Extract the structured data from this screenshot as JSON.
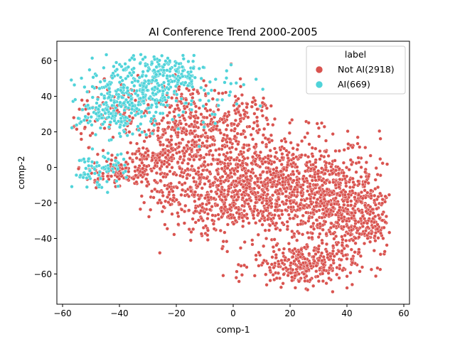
{
  "chart_data": {
    "type": "scatter",
    "title": "AI Conference Trend 2000-2005",
    "xlabel": "comp-1",
    "ylabel": "comp-2",
    "xlim": [
      -62,
      62
    ],
    "ylim": [
      -77,
      71
    ],
    "xticks": [
      -60,
      -40,
      -20,
      0,
      20,
      40,
      60
    ],
    "yticks": [
      -60,
      -40,
      -20,
      0,
      20,
      40,
      60
    ],
    "grid": false,
    "legend": {
      "title": "label",
      "placement": "top-right",
      "entries": [
        {
          "label": "Not AI(2918)",
          "color": "#d9534f"
        },
        {
          "label": "AI(669)",
          "color": "#4fd3d9"
        }
      ]
    },
    "series": [
      {
        "name": "Not AI(2918)",
        "color": "#d9534f",
        "count": 2918,
        "clusters": [
          {
            "cx": 15,
            "cy": -10,
            "sx": 18,
            "sy": 15,
            "n": 900
          },
          {
            "cx": 35,
            "cy": -20,
            "sx": 10,
            "sy": 12,
            "n": 350
          },
          {
            "cx": 25,
            "cy": -55,
            "sx": 9,
            "sy": 6,
            "n": 300
          },
          {
            "cx": 45,
            "cy": -30,
            "sx": 6,
            "sy": 10,
            "n": 200
          },
          {
            "cx": -15,
            "cy": 20,
            "sx": 9,
            "sy": 14,
            "n": 450
          },
          {
            "cx": -5,
            "cy": -15,
            "sx": 12,
            "sy": 10,
            "n": 350
          },
          {
            "cx": -40,
            "cy": -3,
            "sx": 6,
            "sy": 4,
            "n": 120
          },
          {
            "cx": -28,
            "cy": 5,
            "sx": 4,
            "sy": 4,
            "n": 80
          },
          {
            "cx": -40,
            "cy": 30,
            "sx": 8,
            "sy": 8,
            "n": 100
          },
          {
            "cx": 5,
            "cy": 30,
            "sx": 6,
            "sy": 6,
            "n": 68
          }
        ]
      },
      {
        "name": "AI(669)",
        "color": "#4fd3d9",
        "count": 669,
        "clusters": [
          {
            "cx": -35,
            "cy": 42,
            "sx": 9,
            "sy": 10,
            "n": 330
          },
          {
            "cx": -22,
            "cy": 52,
            "sx": 6,
            "sy": 6,
            "n": 140
          },
          {
            "cx": -45,
            "cy": 30,
            "sx": 5,
            "sy": 6,
            "n": 90
          },
          {
            "cx": -47,
            "cy": -2,
            "sx": 5,
            "sy": 5,
            "n": 80
          },
          {
            "cx": -5,
            "cy": 40,
            "sx": 6,
            "sy": 8,
            "n": 29
          }
        ]
      }
    ]
  }
}
